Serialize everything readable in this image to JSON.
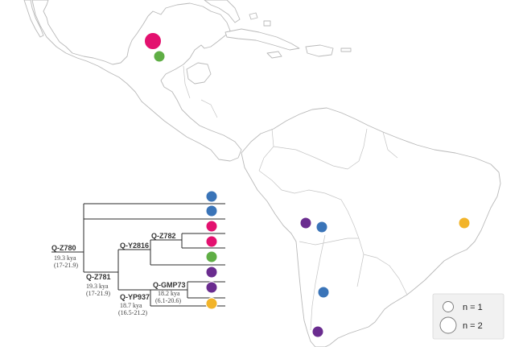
{
  "colors": {
    "blue": "#3a74b8",
    "magenta": "#e3116f",
    "green": "#5fae45",
    "purple": "#6a2c8f",
    "yellow": "#f2b42a"
  },
  "nodes": [
    {
      "id": "n1",
      "name": "Q-Z780",
      "age": "19.3 kya",
      "range": "(17-21.9)"
    },
    {
      "id": "n2",
      "name": "Q-Z781",
      "age": "19.3 kya",
      "range": "(17-21.9)"
    },
    {
      "id": "n3",
      "name": "Q-Y2816",
      "age": "",
      "range": ""
    },
    {
      "id": "n4",
      "name": "Q-Z782",
      "age": "",
      "range": ""
    },
    {
      "id": "n5",
      "name": "Q-YP937",
      "age": "18.7 kya",
      "range": "(16.5-21.2)"
    },
    {
      "id": "n6",
      "name": "Q-GMP73",
      "age": "18.2 kya",
      "range": "(6.1-20.6)"
    }
  ],
  "tips": [
    "blue",
    "blue",
    "magenta",
    "magenta",
    "green",
    "purple",
    "purple",
    "yellow"
  ],
  "samples": [
    {
      "color": "magenta",
      "n": 2,
      "region": "Central Mexico"
    },
    {
      "color": "green",
      "n": 1,
      "region": "Southern Mexico"
    },
    {
      "color": "purple",
      "n": 1,
      "region": "Southern Peru"
    },
    {
      "color": "blue",
      "n": 1,
      "region": "Western Bolivia"
    },
    {
      "color": "yellow",
      "n": 1,
      "region": "Eastern Brazil"
    },
    {
      "color": "blue",
      "n": 1,
      "region": "Northern Argentina"
    },
    {
      "color": "purple",
      "n": 1,
      "region": "Patagonia"
    }
  ],
  "legend": {
    "small_label": "n = 1",
    "large_label": "n = 2"
  }
}
